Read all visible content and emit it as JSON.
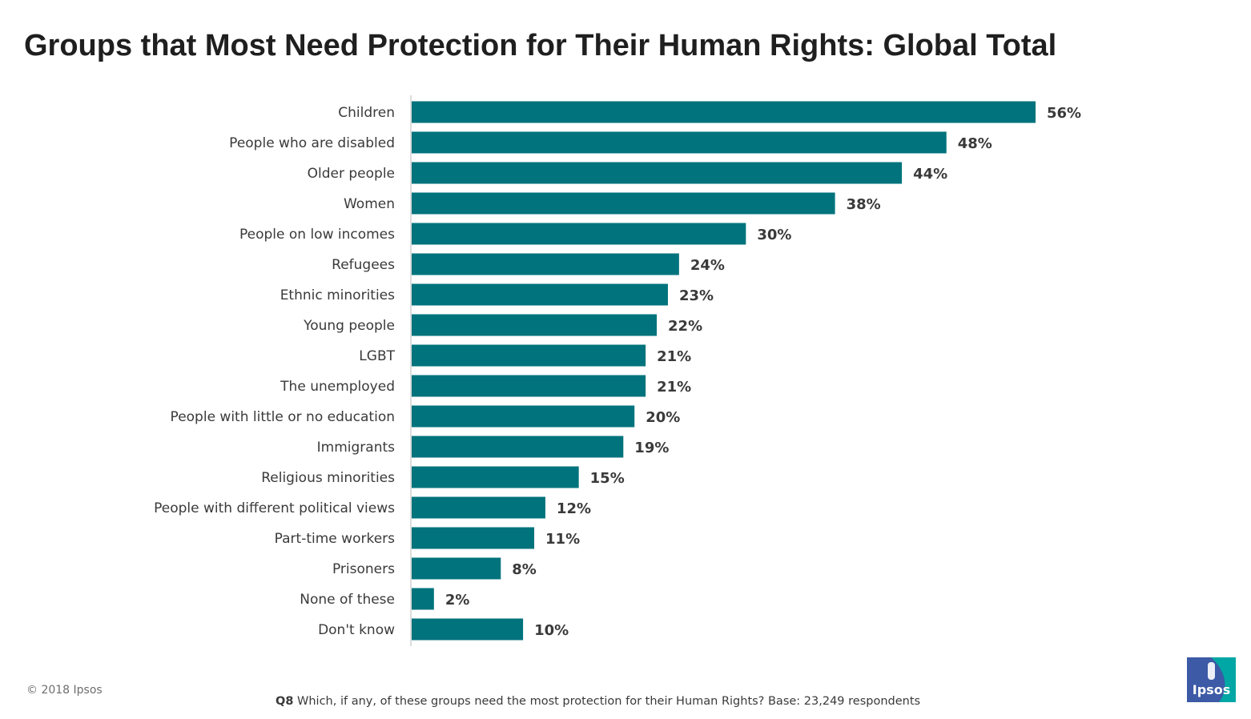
{
  "title": "Groups that Most Need Protection for Their Human Rights: Global Total",
  "colors": {
    "bar": "#00737c",
    "axis": "#d0d0d0",
    "logo_blue": "#3c5aa6",
    "logo_teal": "#00a7a4"
  },
  "chart_data": {
    "type": "bar",
    "orientation": "horizontal",
    "title": "Groups that Most Need Protection for Their Human Rights: Global Total",
    "xlabel": "",
    "ylabel": "",
    "unit": "%",
    "xlim": [
      0,
      56
    ],
    "grid": false,
    "categories": [
      "Children",
      "People who are disabled",
      "Older people",
      "Women",
      "People on low incomes",
      "Refugees",
      "Ethnic minorities",
      "Young people",
      "LGBT",
      "The unemployed",
      "People with little or no education",
      "Immigrants",
      "Religious minorities",
      "People with different political views",
      "Part-time workers",
      "Prisoners",
      "None of these",
      "Don't know"
    ],
    "values": [
      56,
      48,
      44,
      38,
      30,
      24,
      23,
      22,
      21,
      21,
      20,
      19,
      15,
      12,
      11,
      8,
      2,
      10
    ],
    "data_labels": [
      "56%",
      "48%",
      "44%",
      "38%",
      "30%",
      "24%",
      "23%",
      "22%",
      "21%",
      "21%",
      "20%",
      "19%",
      "15%",
      "12%",
      "11%",
      "8%",
      "2%",
      "10%"
    ]
  },
  "copyright": "© 2018 Ipsos",
  "footnote": {
    "label": "Q8",
    "text": " Which, if any, of these groups need the most protection for their Human Rights? Base: 23,249 respondents"
  },
  "logo": {
    "text": "Ipsos"
  }
}
